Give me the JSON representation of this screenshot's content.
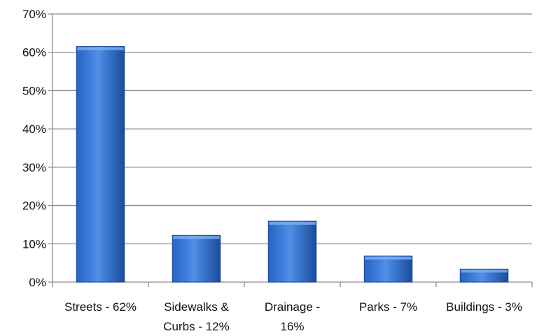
{
  "chart_data": {
    "type": "bar",
    "title": "",
    "xlabel": "",
    "ylabel": "",
    "categories": [
      [
        "Streets - 62%"
      ],
      [
        "Sidewalks &",
        "Curbs - 12%"
      ],
      [
        "Drainage -",
        "16%"
      ],
      [
        "Parks - 7%"
      ],
      [
        "Buildings - 3%"
      ]
    ],
    "values": [
      61.5,
      12.2,
      15.9,
      6.8,
      3.4
    ],
    "ylim": [
      0,
      70
    ],
    "yticks": [
      0,
      10,
      20,
      30,
      40,
      50,
      60,
      70
    ],
    "ytick_labels": [
      "0%",
      "10%",
      "20%",
      "30%",
      "40%",
      "50%",
      "60%",
      "70%"
    ],
    "grid": true,
    "legend": "none",
    "colors": {
      "bar_light": "#4f8fe6",
      "bar_mid": "#2563c6",
      "bar_dark": "#1a4b9c",
      "grid": "#8c8c8c",
      "axis": "#8c8c8c",
      "text": "#111111"
    }
  }
}
